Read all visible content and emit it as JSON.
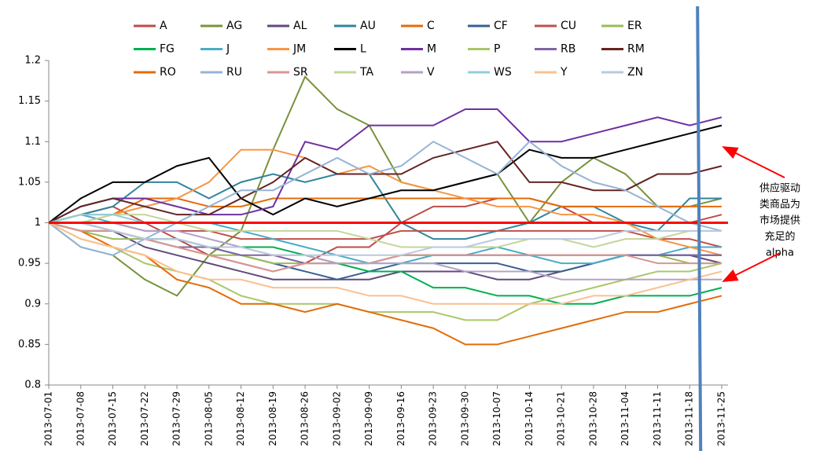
{
  "chart_data": {
    "type": "line",
    "x": [
      "2013-07-01",
      "2013-07-08",
      "2013-07-15",
      "2013-07-22",
      "2013-07-29",
      "2013-08-05",
      "2013-08-12",
      "2013-08-19",
      "2013-08-26",
      "2013-09-02",
      "2013-09-09",
      "2013-09-16",
      "2013-09-23",
      "2013-09-30",
      "2013-10-07",
      "2013-10-14",
      "2013-10-21",
      "2013-10-28",
      "2013-11-04",
      "2013-11-11",
      "2013-11-18",
      "2013-11-25"
    ],
    "ylim": [
      0.8,
      1.2
    ],
    "yticks": [
      0.8,
      0.85,
      0.9,
      0.95,
      1,
      1.05,
      1.1,
      1.15,
      1.2
    ],
    "hline": {
      "value": 1,
      "color": "#ff0000"
    },
    "vline": {
      "x": "2013-11-18",
      "color": "#4f81bd"
    },
    "annotation": {
      "lines": [
        "供应驱动",
        "类商品为",
        "市场提供",
        "充足的",
        "alpha"
      ],
      "arrow_color": "#ff0000"
    },
    "series": [
      {
        "name": "A",
        "color": "#be4b48",
        "values": [
          1,
          1.01,
          1.02,
          1.0,
          0.98,
          0.96,
          0.95,
          0.94,
          0.95,
          0.97,
          0.97,
          1.0,
          1.02,
          1.02,
          1.03,
          1.03,
          1.02,
          1.0,
          1.0,
          1.0,
          1.0,
          1.01
        ]
      },
      {
        "name": "AG",
        "color": "#77933c",
        "values": [
          1,
          0.97,
          0.96,
          0.93,
          0.91,
          0.96,
          0.99,
          1.09,
          1.18,
          1.14,
          1.12,
          1.05,
          1.04,
          1.05,
          1.06,
          1.0,
          1.05,
          1.08,
          1.06,
          1.02,
          1.02,
          1.03
        ]
      },
      {
        "name": "AL",
        "color": "#604a7b",
        "values": [
          1,
          1.0,
          0.99,
          0.97,
          0.96,
          0.95,
          0.94,
          0.93,
          0.93,
          0.93,
          0.93,
          0.94,
          0.94,
          0.94,
          0.93,
          0.93,
          0.94,
          0.95,
          0.96,
          0.96,
          0.96,
          0.95
        ]
      },
      {
        "name": "AU",
        "color": "#31859c",
        "values": [
          1,
          1.01,
          1.02,
          1.05,
          1.05,
          1.03,
          1.05,
          1.06,
          1.05,
          1.06,
          1.06,
          1.0,
          0.98,
          0.98,
          0.99,
          1.0,
          1.02,
          1.02,
          1.0,
          0.99,
          1.03,
          1.03
        ]
      },
      {
        "name": "C",
        "color": "#e46c0a",
        "values": [
          1,
          1.01,
          1.01,
          1.03,
          1.03,
          1.02,
          1.02,
          1.03,
          1.03,
          1.03,
          1.03,
          1.03,
          1.03,
          1.03,
          1.03,
          1.03,
          1.02,
          1.02,
          1.02,
          1.02,
          1.02,
          1.02
        ]
      },
      {
        "name": "CF",
        "color": "#376092",
        "values": [
          1,
          0.99,
          0.99,
          0.98,
          0.98,
          0.97,
          0.96,
          0.95,
          0.94,
          0.93,
          0.94,
          0.95,
          0.95,
          0.95,
          0.95,
          0.94,
          0.94,
          0.95,
          0.96,
          0.96,
          0.96,
          0.96
        ]
      },
      {
        "name": "CU",
        "color": "#c0504d",
        "values": [
          1,
          1.0,
          1.0,
          0.99,
          0.99,
          0.99,
          0.98,
          0.98,
          0.98,
          0.98,
          0.98,
          0.99,
          0.99,
          0.99,
          0.99,
          0.99,
          0.99,
          0.99,
          0.99,
          0.98,
          0.98,
          0.97
        ]
      },
      {
        "name": "ER",
        "color": "#9bbb59",
        "values": [
          1,
          0.99,
          0.98,
          0.98,
          0.97,
          0.96,
          0.96,
          0.95,
          0.95,
          0.95,
          0.95,
          0.96,
          0.96,
          0.96,
          0.96,
          0.96,
          0.96,
          0.96,
          0.96,
          0.96,
          0.95,
          0.95
        ]
      },
      {
        "name": "FG",
        "color": "#00b050",
        "values": [
          1,
          0.99,
          0.99,
          0.98,
          0.98,
          0.97,
          0.97,
          0.97,
          0.96,
          0.95,
          0.94,
          0.94,
          0.92,
          0.92,
          0.91,
          0.91,
          0.9,
          0.9,
          0.91,
          0.91,
          0.91,
          0.92
        ]
      },
      {
        "name": "J",
        "color": "#4bacc6",
        "values": [
          1,
          1.01,
          1.0,
          1.0,
          1.0,
          1.0,
          0.99,
          0.98,
          0.97,
          0.96,
          0.95,
          0.95,
          0.96,
          0.96,
          0.97,
          0.96,
          0.95,
          0.95,
          0.96,
          0.96,
          0.97,
          0.97
        ]
      },
      {
        "name": "JM",
        "color": "#f79646",
        "values": [
          1,
          1.0,
          1.01,
          1.02,
          1.03,
          1.05,
          1.09,
          1.09,
          1.08,
          1.06,
          1.07,
          1.05,
          1.04,
          1.03,
          1.02,
          1.02,
          1.01,
          1.01,
          1.0,
          0.98,
          0.97,
          0.96
        ]
      },
      {
        "name": "L",
        "color": "#000000",
        "values": [
          1,
          1.03,
          1.05,
          1.05,
          1.07,
          1.08,
          1.03,
          1.01,
          1.03,
          1.02,
          1.03,
          1.04,
          1.04,
          1.05,
          1.06,
          1.09,
          1.08,
          1.08,
          1.09,
          1.1,
          1.11,
          1.12
        ]
      },
      {
        "name": "M",
        "color": "#7030a0",
        "values": [
          1,
          1.02,
          1.03,
          1.03,
          1.02,
          1.01,
          1.01,
          1.02,
          1.1,
          1.09,
          1.12,
          1.12,
          1.12,
          1.14,
          1.14,
          1.1,
          1.1,
          1.11,
          1.12,
          1.13,
          1.12,
          1.13
        ]
      },
      {
        "name": "P",
        "color": "#a9c76a",
        "values": [
          1,
          0.98,
          0.97,
          0.95,
          0.94,
          0.93,
          0.91,
          0.9,
          0.9,
          0.9,
          0.89,
          0.89,
          0.89,
          0.88,
          0.88,
          0.9,
          0.91,
          0.92,
          0.93,
          0.94,
          0.94,
          0.95
        ]
      },
      {
        "name": "RB",
        "color": "#8064a2",
        "values": [
          1,
          1.0,
          0.99,
          0.98,
          0.97,
          0.97,
          0.96,
          0.96,
          0.95,
          0.95,
          0.95,
          0.96,
          0.96,
          0.96,
          0.96,
          0.96,
          0.96,
          0.96,
          0.96,
          0.96,
          0.96,
          0.96
        ]
      },
      {
        "name": "RM",
        "color": "#632523",
        "values": [
          1,
          1.02,
          1.03,
          1.02,
          1.01,
          1.01,
          1.03,
          1.05,
          1.08,
          1.06,
          1.06,
          1.06,
          1.08,
          1.09,
          1.1,
          1.05,
          1.05,
          1.04,
          1.04,
          1.06,
          1.06,
          1.07
        ]
      },
      {
        "name": "RO",
        "color": "#e36c09",
        "values": [
          1,
          0.99,
          0.97,
          0.96,
          0.93,
          0.92,
          0.9,
          0.9,
          0.89,
          0.9,
          0.89,
          0.88,
          0.87,
          0.85,
          0.85,
          0.86,
          0.87,
          0.88,
          0.89,
          0.89,
          0.9,
          0.91
        ]
      },
      {
        "name": "RU",
        "color": "#95b3d7",
        "values": [
          1,
          0.97,
          0.96,
          0.98,
          1.0,
          1.02,
          1.04,
          1.04,
          1.06,
          1.08,
          1.06,
          1.07,
          1.1,
          1.08,
          1.06,
          1.1,
          1.07,
          1.05,
          1.04,
          1.02,
          1.0,
          0.99
        ]
      },
      {
        "name": "SR",
        "color": "#d99694",
        "values": [
          1,
          0.99,
          0.99,
          0.98,
          0.97,
          0.96,
          0.95,
          0.94,
          0.95,
          0.95,
          0.95,
          0.96,
          0.96,
          0.96,
          0.96,
          0.96,
          0.96,
          0.96,
          0.96,
          0.95,
          0.95,
          0.95
        ]
      },
      {
        "name": "TA",
        "color": "#c3d69b",
        "values": [
          1,
          1.0,
          1.01,
          1.01,
          1.0,
          0.99,
          0.99,
          0.99,
          0.99,
          0.99,
          0.98,
          0.97,
          0.97,
          0.97,
          0.97,
          0.98,
          0.98,
          0.97,
          0.98,
          0.98,
          0.99,
          0.99
        ]
      },
      {
        "name": "V",
        "color": "#b3a2c7",
        "values": [
          1,
          1.0,
          1.0,
          0.99,
          0.99,
          0.98,
          0.97,
          0.96,
          0.96,
          0.95,
          0.95,
          0.95,
          0.95,
          0.94,
          0.94,
          0.94,
          0.93,
          0.93,
          0.93,
          0.93,
          0.93,
          0.93
        ]
      },
      {
        "name": "WS",
        "color": "#93cddd",
        "values": [
          1,
          1.01,
          1.01,
          1.0,
          1.0,
          1.0,
          1.0,
          1.0,
          1.0,
          1.0,
          1.0,
          1.0,
          1.0,
          1.0,
          1.0,
          1.0,
          1.0,
          1.0,
          1.0,
          1.0,
          1.0,
          1.0
        ]
      },
      {
        "name": "Y",
        "color": "#fac090",
        "values": [
          1,
          0.98,
          0.97,
          0.96,
          0.94,
          0.93,
          0.93,
          0.92,
          0.92,
          0.92,
          0.91,
          0.91,
          0.9,
          0.9,
          0.9,
          0.9,
          0.9,
          0.91,
          0.91,
          0.92,
          0.93,
          0.94
        ]
      },
      {
        "name": "ZN",
        "color": "#b9c9e0",
        "values": [
          1,
          1.0,
          0.99,
          0.98,
          0.98,
          0.97,
          0.97,
          0.96,
          0.96,
          0.96,
          0.96,
          0.96,
          0.97,
          0.97,
          0.98,
          0.98,
          0.98,
          0.98,
          0.99,
          0.99,
          0.99,
          0.99
        ]
      }
    ]
  }
}
